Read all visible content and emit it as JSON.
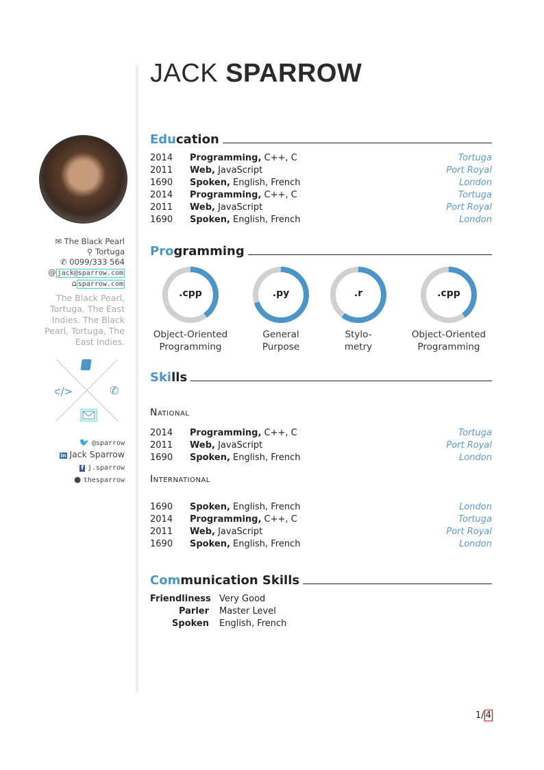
{
  "header": {
    "first_name": "JACK",
    "last_name": "SPARROW"
  },
  "sidebar": {
    "address": "The Black Pearl",
    "city": "Tortuga",
    "phone": "0099/333 564",
    "email": "jack@sparrow.com",
    "website": "sparrow.com",
    "about": "The Black Pearl, Tortuga, The East Indies. The Black Pearl, Tortuga, The East Indies.",
    "twitter": "@sparrow",
    "linkedin": "Jack Sparrow",
    "facebook": "j.sparrow",
    "github": "thesparrow",
    "accent": "#4b95c8"
  },
  "education": {
    "title_accent": "Edu",
    "title_rest": "cation",
    "rows": [
      {
        "year": "2014",
        "field": "Programming,",
        "detail": " C++, C",
        "location": "Tortuga"
      },
      {
        "year": "2011",
        "field": "Web,",
        "detail": " JavaScript",
        "location": "Port Royal"
      },
      {
        "year": "1690",
        "field": "Spoken,",
        "detail": " English, French",
        "location": "London"
      },
      {
        "year": "2014",
        "field": "Programming,",
        "detail": " C++, C",
        "location": "Tortuga"
      },
      {
        "year": "2011",
        "field": "Web,",
        "detail": " JavaScript",
        "location": "Port Royal"
      },
      {
        "year": "1690",
        "field": "Spoken,",
        "detail": " English, French",
        "location": "London"
      }
    ]
  },
  "programming": {
    "title_accent": "Pro",
    "title_rest": "gramming",
    "rings": [
      {
        "label": ".cpp",
        "caption1": "Object-Oriented",
        "caption2": "Programming",
        "level": 0.4
      },
      {
        "label": ".py",
        "caption1": "General",
        "caption2": "Purpose",
        "level": 0.7
      },
      {
        "label": ".r",
        "caption1": "Stylo-",
        "caption2": "metry",
        "level": 0.6
      },
      {
        "label": ".cpp",
        "caption1": "Object-Oriented",
        "caption2": "Programming",
        "level": 0.4
      }
    ]
  },
  "skills": {
    "title_accent": "Ski",
    "title_rest": "lls",
    "national": {
      "title": "National",
      "rows": [
        {
          "year": "2014",
          "field": "Programming,",
          "detail": " C++, C",
          "location": "Tortuga"
        },
        {
          "year": "2011",
          "field": "Web,",
          "detail": " JavaScript",
          "location": "Port Royal"
        },
        {
          "year": "1690",
          "field": "Spoken,",
          "detail": " English, French",
          "location": "London"
        }
      ]
    },
    "international": {
      "title": "International",
      "rows": [
        {
          "year": "1690",
          "field": "Spoken,",
          "detail": " English, French",
          "location": "London"
        },
        {
          "year": "2014",
          "field": "Programming,",
          "detail": " C++, C",
          "location": "Tortuga"
        },
        {
          "year": "2011",
          "field": "Web,",
          "detail": " JavaScript",
          "location": "Port Royal"
        },
        {
          "year": "1690",
          "field": "Spoken,",
          "detail": " English, French",
          "location": "London"
        }
      ]
    }
  },
  "communication": {
    "title_accent": "Com",
    "title_rest": "munication Skills",
    "rows": [
      {
        "key": "Friendliness",
        "value": "Very Good"
      },
      {
        "key": "Parler",
        "value": "Master Level"
      },
      {
        "key": "Spoken",
        "value": "English, French"
      }
    ]
  },
  "footer": {
    "page": "1/",
    "total": "4"
  }
}
